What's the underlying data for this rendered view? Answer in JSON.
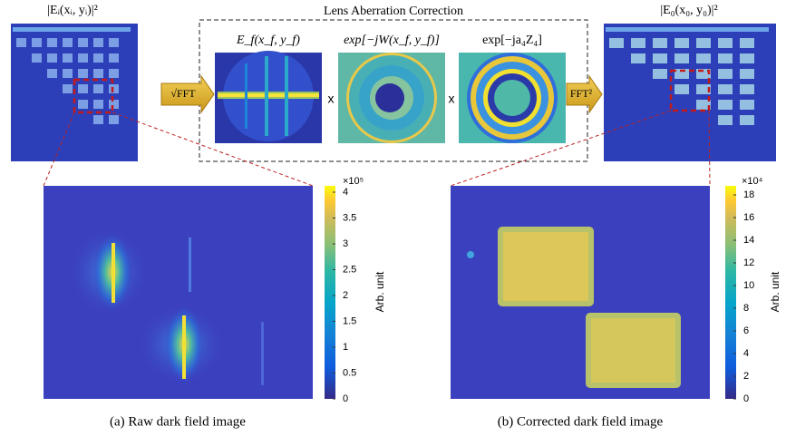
{
  "figure": {
    "title": "Lens Aberration Correction",
    "input_label": "|Eᵢ(xᵢ, yᵢ)|²",
    "output_label": "|E₀(x₀, y₀)|²",
    "panels": [
      "E_f(x_f, y_f)",
      "exp[−jW(x_f, y_f)]",
      "exp[−ja₄Z₄]"
    ],
    "operators": [
      "x",
      "x"
    ],
    "arrows": [
      "√FFT",
      "FFT²"
    ]
  },
  "plots": [
    {
      "caption": "(a) Raw dark field image",
      "colorbar_label": "Arb. unit",
      "multiplier": "×10⁵",
      "ticks": [
        0,
        0.5,
        1,
        1.5,
        2,
        2.5,
        3,
        3.5,
        4
      ]
    },
    {
      "caption": "(b) Corrected dark field image",
      "colorbar_label": "Arb. unit",
      "multiplier": "×10⁴",
      "ticks": [
        0,
        2,
        4,
        6,
        8,
        10,
        12,
        14,
        16,
        18
      ]
    }
  ]
}
